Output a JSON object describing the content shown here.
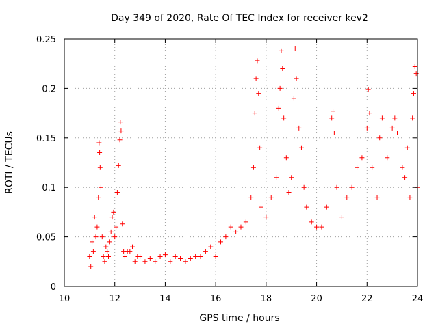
{
  "chart_data": {
    "type": "scatter",
    "title": "Day 349 of 2020, Rate Of TEC Index for receiver kev2",
    "xlabel": "GPS time / hours",
    "ylabel": "ROTI / TECUs",
    "xlim": [
      10,
      24
    ],
    "ylim": [
      0,
      0.25
    ],
    "x_ticks": [
      "10",
      "12",
      "14",
      "16",
      "18",
      "20",
      "22",
      "24"
    ],
    "y_ticks": [
      "0",
      "0.05",
      "0.1",
      "0.15",
      "0.2",
      "0.25"
    ],
    "grid": true,
    "marker": "+",
    "color": "#ff0000",
    "series": [
      {
        "name": "ROTI",
        "x": [
          11.0,
          11.05,
          11.1,
          11.15,
          11.2,
          11.25,
          11.3,
          11.35,
          11.38,
          11.4,
          11.42,
          11.45,
          11.5,
          11.55,
          11.6,
          11.65,
          11.7,
          11.75,
          11.8,
          11.85,
          11.9,
          11.95,
          12.0,
          12.05,
          12.1,
          12.15,
          12.2,
          12.22,
          12.25,
          12.3,
          12.35,
          12.4,
          12.5,
          12.6,
          12.7,
          12.8,
          12.9,
          13.0,
          13.2,
          13.4,
          13.6,
          13.8,
          14.0,
          14.2,
          14.4,
          14.6,
          14.8,
          15.0,
          15.2,
          15.4,
          15.6,
          15.8,
          16.0,
          16.2,
          16.4,
          16.6,
          16.8,
          17.0,
          17.2,
          17.4,
          17.5,
          17.55,
          17.6,
          17.65,
          17.7,
          17.75,
          17.8,
          18.0,
          18.2,
          18.4,
          18.5,
          18.55,
          18.6,
          18.65,
          18.7,
          18.8,
          18.9,
          19.0,
          19.1,
          19.15,
          19.2,
          19.3,
          19.4,
          19.5,
          19.6,
          19.8,
          20.0,
          20.2,
          20.4,
          20.6,
          20.65,
          20.7,
          20.8,
          21.0,
          21.2,
          21.4,
          21.6,
          21.8,
          22.0,
          22.05,
          22.1,
          22.2,
          22.4,
          22.5,
          22.6,
          22.8,
          23.0,
          23.1,
          23.2,
          23.4,
          23.5,
          23.6,
          23.7,
          23.8,
          23.85,
          23.9,
          23.95,
          24.0
        ],
        "values": [
          0.03,
          0.02,
          0.045,
          0.035,
          0.07,
          0.05,
          0.06,
          0.09,
          0.145,
          0.135,
          0.12,
          0.1,
          0.05,
          0.03,
          0.025,
          0.04,
          0.035,
          0.03,
          0.045,
          0.055,
          0.07,
          0.075,
          0.05,
          0.06,
          0.095,
          0.122,
          0.148,
          0.166,
          0.157,
          0.063,
          0.035,
          0.03,
          0.035,
          0.035,
          0.04,
          0.025,
          0.03,
          0.03,
          0.025,
          0.028,
          0.025,
          0.03,
          0.032,
          0.025,
          0.03,
          0.028,
          0.025,
          0.028,
          0.03,
          0.03,
          0.035,
          0.04,
          0.03,
          0.045,
          0.05,
          0.06,
          0.055,
          0.06,
          0.065,
          0.09,
          0.12,
          0.175,
          0.21,
          0.228,
          0.195,
          0.14,
          0.08,
          0.07,
          0.09,
          0.11,
          0.18,
          0.2,
          0.238,
          0.22,
          0.17,
          0.13,
          0.095,
          0.11,
          0.19,
          0.24,
          0.21,
          0.16,
          0.14,
          0.1,
          0.08,
          0.065,
          0.06,
          0.06,
          0.08,
          0.17,
          0.177,
          0.155,
          0.1,
          0.07,
          0.09,
          0.1,
          0.12,
          0.13,
          0.16,
          0.199,
          0.175,
          0.12,
          0.09,
          0.15,
          0.17,
          0.13,
          0.16,
          0.17,
          0.155,
          0.12,
          0.11,
          0.14,
          0.09,
          0.17,
          0.195,
          0.222,
          0.215,
          0.1
        ]
      }
    ]
  }
}
